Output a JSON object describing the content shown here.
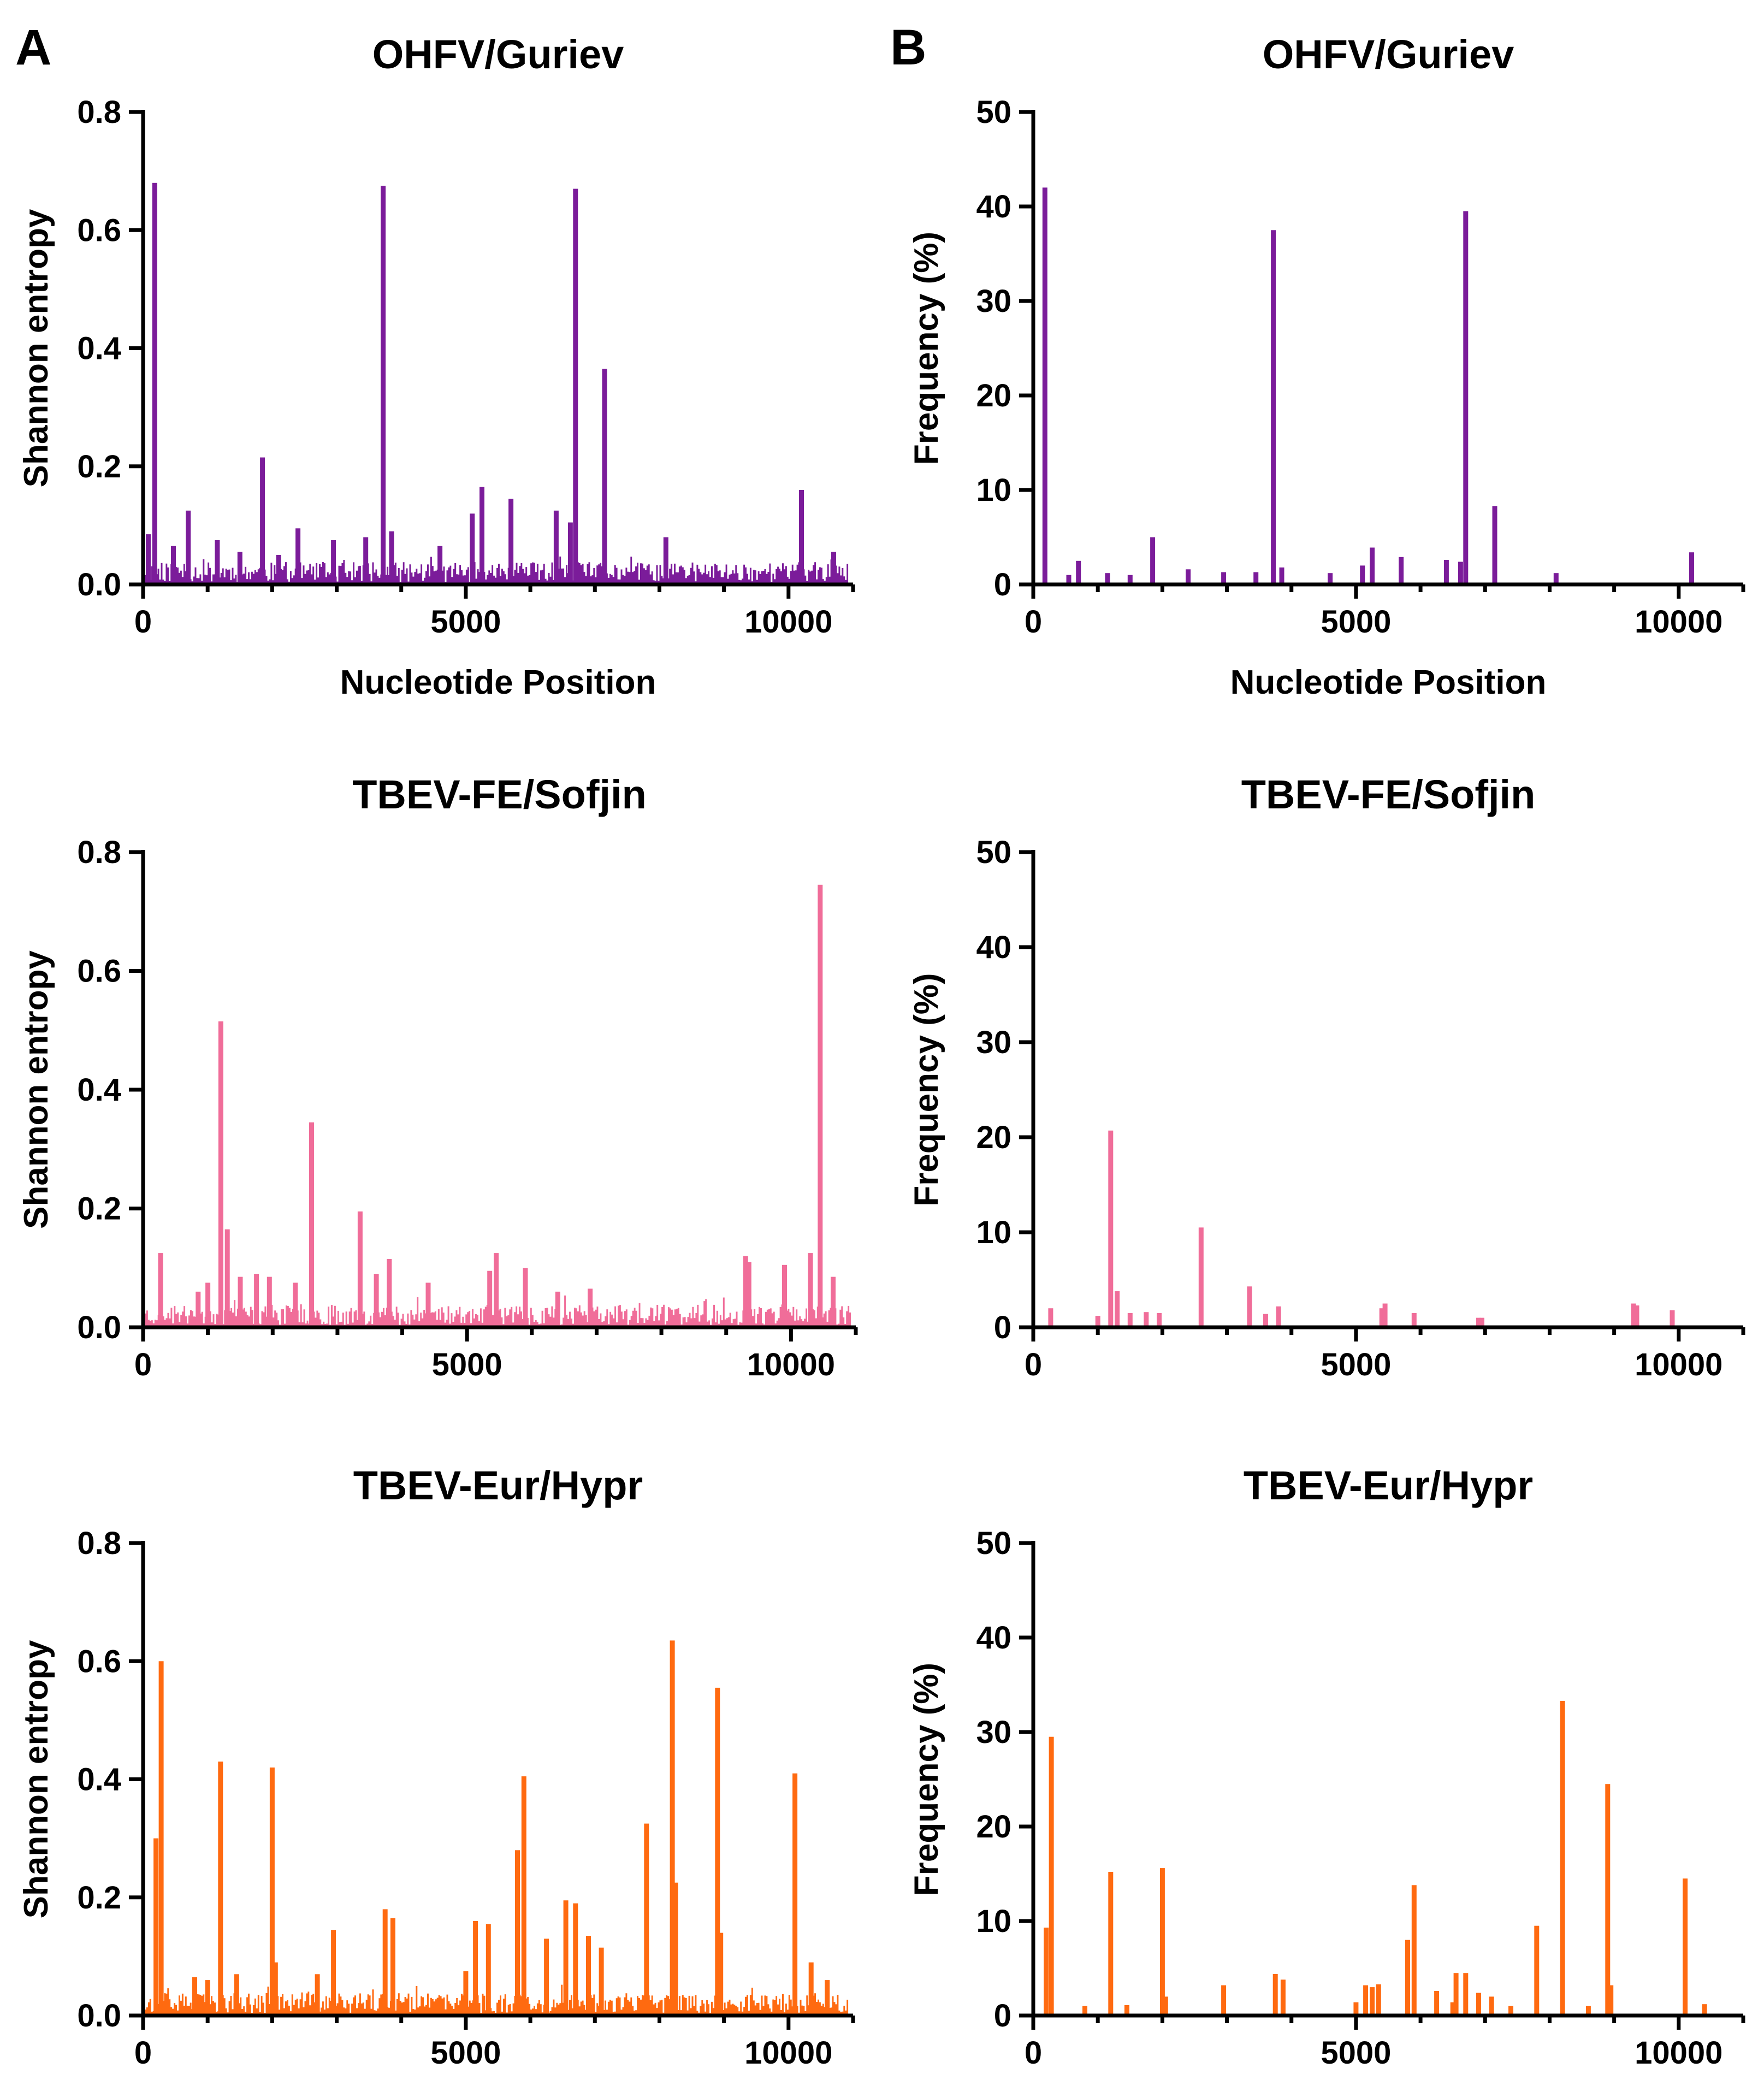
{
  "panel_labels": [
    "A",
    "B"
  ],
  "chart_data": [
    {
      "panel": "A",
      "type": "bar",
      "title": "OHFV/Guriev",
      "xlabel": "Nucleotide Position",
      "ylabel": "Shannon entropy",
      "xlim": [
        0,
        11000
      ],
      "ylim": [
        0,
        0.8
      ],
      "xticks": [
        0,
        5000,
        10000
      ],
      "xtick_labels": [
        "0",
        "5000",
        "10000"
      ],
      "yticks": [
        0,
        0.2,
        0.4,
        0.6,
        0.8
      ],
      "ytick_labels": [
        "0.0",
        "0.2",
        "0.4",
        "0.6",
        "0.8"
      ],
      "color": "#7B1C9A",
      "background_level": [
        0.0,
        0.04
      ],
      "series_seed": 11,
      "peaks": [
        [
          80,
          0.085
        ],
        [
          180,
          0.68
        ],
        [
          470,
          0.065
        ],
        [
          700,
          0.125
        ],
        [
          1150,
          0.075
        ],
        [
          1500,
          0.055
        ],
        [
          1850,
          0.215
        ],
        [
          2100,
          0.05
        ],
        [
          2400,
          0.095
        ],
        [
          2950,
          0.075
        ],
        [
          3450,
          0.08
        ],
        [
          3720,
          0.675
        ],
        [
          3850,
          0.09
        ],
        [
          4600,
          0.065
        ],
        [
          5100,
          0.12
        ],
        [
          5250,
          0.165
        ],
        [
          5700,
          0.145
        ],
        [
          6400,
          0.125
        ],
        [
          6620,
          0.105
        ],
        [
          6700,
          0.67
        ],
        [
          7150,
          0.365
        ],
        [
          8100,
          0.08
        ],
        [
          10200,
          0.16
        ],
        [
          10700,
          0.055
        ]
      ]
    },
    {
      "panel": "B",
      "type": "bar",
      "title": "OHFV/Guriev",
      "xlabel": "Nucleotide Position",
      "ylabel": "Frequency (%)",
      "xlim": [
        0,
        11000
      ],
      "ylim": [
        0,
        50
      ],
      "xticks": [
        0,
        5000,
        10000
      ],
      "xtick_labels": [
        "0",
        "5000",
        "10000"
      ],
      "yticks": [
        0,
        10,
        20,
        30,
        40,
        50
      ],
      "ytick_labels": [
        "0",
        "10",
        "20",
        "30",
        "40",
        "50"
      ],
      "color": "#7B1C9A",
      "peaks": [
        [
          180,
          42
        ],
        [
          550,
          1.0
        ],
        [
          700,
          2.5
        ],
        [
          1150,
          1.2
        ],
        [
          1500,
          1.0
        ],
        [
          1850,
          5.0
        ],
        [
          2400,
          1.6
        ],
        [
          2950,
          1.3
        ],
        [
          3450,
          1.3
        ],
        [
          3720,
          37.5
        ],
        [
          3850,
          1.8
        ],
        [
          4600,
          1.2
        ],
        [
          5100,
          2.0
        ],
        [
          5250,
          3.9
        ],
        [
          5700,
          2.9
        ],
        [
          6400,
          2.6
        ],
        [
          6620,
          2.4
        ],
        [
          6700,
          39.5
        ],
        [
          7150,
          8.3
        ],
        [
          8100,
          1.2
        ],
        [
          10200,
          3.4
        ]
      ]
    },
    {
      "panel": "A",
      "type": "bar",
      "title": "TBEV-FE/Sofjin",
      "xlabel": "",
      "ylabel": "Shannon entropy",
      "xlim": [
        0,
        11000
      ],
      "ylim": [
        0,
        0.8
      ],
      "xticks": [
        0,
        5000,
        10000
      ],
      "xtick_labels": [
        "0",
        "5000",
        "10000"
      ],
      "yticks": [
        0,
        0.2,
        0.4,
        0.6,
        0.8
      ],
      "ytick_labels": [
        "0.0",
        "0.2",
        "0.4",
        "0.6",
        "0.8"
      ],
      "color": "#F06D99",
      "background_level": [
        0.0,
        0.04
      ],
      "series_seed": 23,
      "peaks": [
        [
          270,
          0.125
        ],
        [
          850,
          0.06
        ],
        [
          1000,
          0.075
        ],
        [
          1200,
          0.515
        ],
        [
          1300,
          0.165
        ],
        [
          1500,
          0.085
        ],
        [
          1750,
          0.09
        ],
        [
          1950,
          0.085
        ],
        [
          2350,
          0.075
        ],
        [
          2600,
          0.345
        ],
        [
          3350,
          0.195
        ],
        [
          3600,
          0.09
        ],
        [
          3800,
          0.115
        ],
        [
          4400,
          0.075
        ],
        [
          5350,
          0.095
        ],
        [
          5450,
          0.125
        ],
        [
          5900,
          0.1
        ],
        [
          6400,
          0.06
        ],
        [
          6900,
          0.065
        ],
        [
          9300,
          0.12
        ],
        [
          9350,
          0.11
        ],
        [
          9900,
          0.105
        ],
        [
          10300,
          0.125
        ],
        [
          10450,
          0.745
        ],
        [
          10650,
          0.085
        ]
      ]
    },
    {
      "panel": "B",
      "type": "bar",
      "title": "TBEV-FE/Sofjin",
      "xlabel": "",
      "ylabel": "Frequency (%)",
      "xlim": [
        0,
        11000
      ],
      "ylim": [
        0,
        50
      ],
      "xticks": [
        0,
        5000,
        10000
      ],
      "xtick_labels": [
        "0",
        "5000",
        "10000"
      ],
      "yticks": [
        0,
        10,
        20,
        30,
        40,
        50
      ],
      "ytick_labels": [
        "0",
        "10",
        "20",
        "30",
        "40",
        "50"
      ],
      "color": "#F06D99",
      "peaks": [
        [
          270,
          2.0
        ],
        [
          1000,
          1.2
        ],
        [
          1200,
          20.7
        ],
        [
          1300,
          3.8
        ],
        [
          1500,
          1.5
        ],
        [
          1750,
          1.6
        ],
        [
          1950,
          1.5
        ],
        [
          2600,
          10.5
        ],
        [
          3350,
          4.3
        ],
        [
          3600,
          1.4
        ],
        [
          3800,
          2.2
        ],
        [
          5400,
          2.0
        ],
        [
          5450,
          2.5
        ],
        [
          5900,
          1.5
        ],
        [
          6900,
          1.0
        ],
        [
          6950,
          1.0
        ],
        [
          9300,
          2.5
        ],
        [
          9350,
          2.3
        ],
        [
          9900,
          1.8
        ]
      ]
    },
    {
      "panel": "A",
      "type": "bar",
      "title": "TBEV-Eur/Hypr",
      "xlabel": "",
      "ylabel": "Shannon entropy",
      "xlim": [
        0,
        11000
      ],
      "ylim": [
        0,
        0.8
      ],
      "xticks": [
        0,
        5000,
        10000
      ],
      "xtick_labels": [
        "0",
        "5000",
        "10000"
      ],
      "yticks": [
        0,
        0.2,
        0.4,
        0.6,
        0.8
      ],
      "ytick_labels": [
        "0.0",
        "0.2",
        "0.4",
        "0.6",
        "0.8"
      ],
      "color": "#FF6A10",
      "background_level": [
        0.0,
        0.04
      ],
      "series_seed": 37,
      "peaks": [
        [
          200,
          0.3
        ],
        [
          280,
          0.6
        ],
        [
          800,
          0.065
        ],
        [
          1000,
          0.06
        ],
        [
          1200,
          0.43
        ],
        [
          1450,
          0.07
        ],
        [
          2000,
          0.42
        ],
        [
          2050,
          0.09
        ],
        [
          2700,
          0.07
        ],
        [
          2950,
          0.145
        ],
        [
          3750,
          0.18
        ],
        [
          3870,
          0.165
        ],
        [
          5000,
          0.075
        ],
        [
          5150,
          0.16
        ],
        [
          5350,
          0.155
        ],
        [
          5800,
          0.28
        ],
        [
          5900,
          0.405
        ],
        [
          6250,
          0.13
        ],
        [
          6550,
          0.195
        ],
        [
          6700,
          0.19
        ],
        [
          6900,
          0.135
        ],
        [
          7100,
          0.115
        ],
        [
          7800,
          0.325
        ],
        [
          8200,
          0.635
        ],
        [
          8250,
          0.225
        ],
        [
          8900,
          0.555
        ],
        [
          8950,
          0.14
        ],
        [
          10100,
          0.41
        ],
        [
          10350,
          0.09
        ],
        [
          10600,
          0.06
        ]
      ]
    },
    {
      "panel": "B",
      "type": "bar",
      "title": "TBEV-Eur/Hypr",
      "xlabel": "",
      "ylabel": "Frequency (%)",
      "xlim": [
        0,
        11000
      ],
      "ylim": [
        0,
        50
      ],
      "xticks": [
        0,
        5000,
        10000
      ],
      "xtick_labels": [
        "0",
        "5000",
        "10000"
      ],
      "yticks": [
        0,
        10,
        20,
        30,
        40,
        50
      ],
      "ytick_labels": [
        "0",
        "10",
        "20",
        "30",
        "40",
        "50"
      ],
      "color": "#FF6A10",
      "peaks": [
        [
          200,
          9.3
        ],
        [
          280,
          29.5
        ],
        [
          800,
          1.0
        ],
        [
          1200,
          15.2
        ],
        [
          1450,
          1.1
        ],
        [
          2000,
          15.6
        ],
        [
          2050,
          2.0
        ],
        [
          2950,
          3.2
        ],
        [
          3750,
          4.4
        ],
        [
          3870,
          3.8
        ],
        [
          5000,
          1.4
        ],
        [
          5150,
          3.2
        ],
        [
          5250,
          3.0
        ],
        [
          5350,
          3.3
        ],
        [
          5800,
          8.0
        ],
        [
          5900,
          13.8
        ],
        [
          6250,
          2.6
        ],
        [
          6500,
          1.4
        ],
        [
          6550,
          4.5
        ],
        [
          6700,
          4.5
        ],
        [
          6900,
          2.4
        ],
        [
          7100,
          2.0
        ],
        [
          7400,
          1.0
        ],
        [
          7800,
          9.5
        ],
        [
          8200,
          33.3
        ],
        [
          8600,
          1.0
        ],
        [
          8900,
          24.5
        ],
        [
          8950,
          3.2
        ],
        [
          10100,
          14.5
        ],
        [
          10400,
          1.2
        ]
      ]
    }
  ]
}
